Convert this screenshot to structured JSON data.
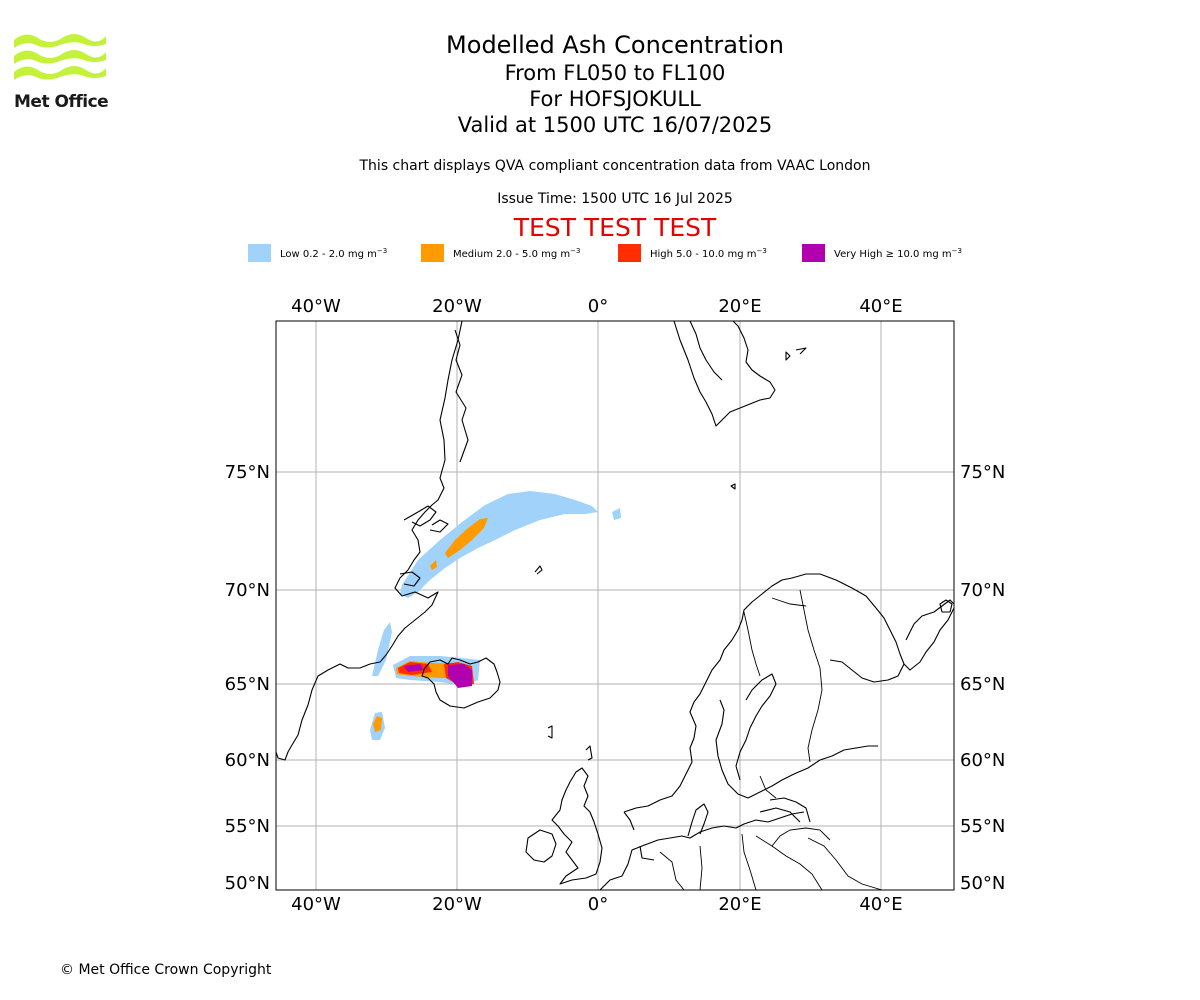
{
  "logo": {
    "text": "Met Office",
    "color": "#c4f23a"
  },
  "title": {
    "main": "Modelled Ash Concentration",
    "levels": "From FL050 to FL100",
    "volcano": "For HOFSJOKULL",
    "valid": "Valid at 1500 UTC 16/07/2025"
  },
  "description": "This chart displays QVA compliant concentration data from VAAC London",
  "issue_time": "Issue Time: 1500 UTC 16 Jul 2025",
  "test_banner": "TEST TEST TEST",
  "legend": [
    {
      "label": "Low 0.2 - 2.0 mg m",
      "exp": "−3",
      "color": "#a0d2fa"
    },
    {
      "label": "Medium 2.0 - 5.0 mg m",
      "exp": "−3",
      "color": "#ff9a00"
    },
    {
      "label": "High 5.0 - 10.0 mg m",
      "exp": "−3",
      "color": "#ff2d00"
    },
    {
      "label": "Very High  ≥  10.0 mg m",
      "exp": "−3",
      "color": "#b000b0"
    }
  ],
  "map": {
    "lon_labels": [
      "40°W",
      "20°W",
      "0°",
      "20°E",
      "40°E"
    ],
    "lat_labels": [
      "75°N",
      "70°N",
      "65°N",
      "60°N",
      "55°N",
      "50°N"
    ],
    "grid": true,
    "gridline_color": "#b0b0b0",
    "coastline_color": "#000000"
  },
  "copyright": "© Met Office Crown Copyright"
}
